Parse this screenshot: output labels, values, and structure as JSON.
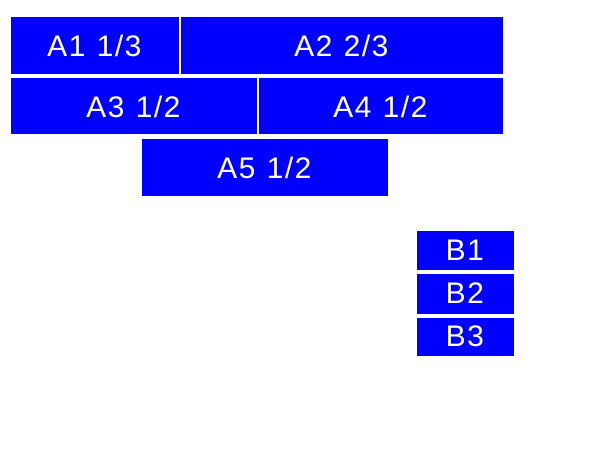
{
  "colors": {
    "box": "#0000ff",
    "label": "#ffffff",
    "background": "#ffffff"
  },
  "group_a": {
    "items": [
      {
        "label": "A1 1/3"
      },
      {
        "label": "A2 2/3"
      },
      {
        "label": "A3 1/2"
      },
      {
        "label": "A4 1/2"
      },
      {
        "label": "A5 1/2"
      }
    ]
  },
  "group_b": {
    "items": [
      {
        "label": "B1"
      },
      {
        "label": "B2"
      },
      {
        "label": "B3"
      }
    ]
  }
}
